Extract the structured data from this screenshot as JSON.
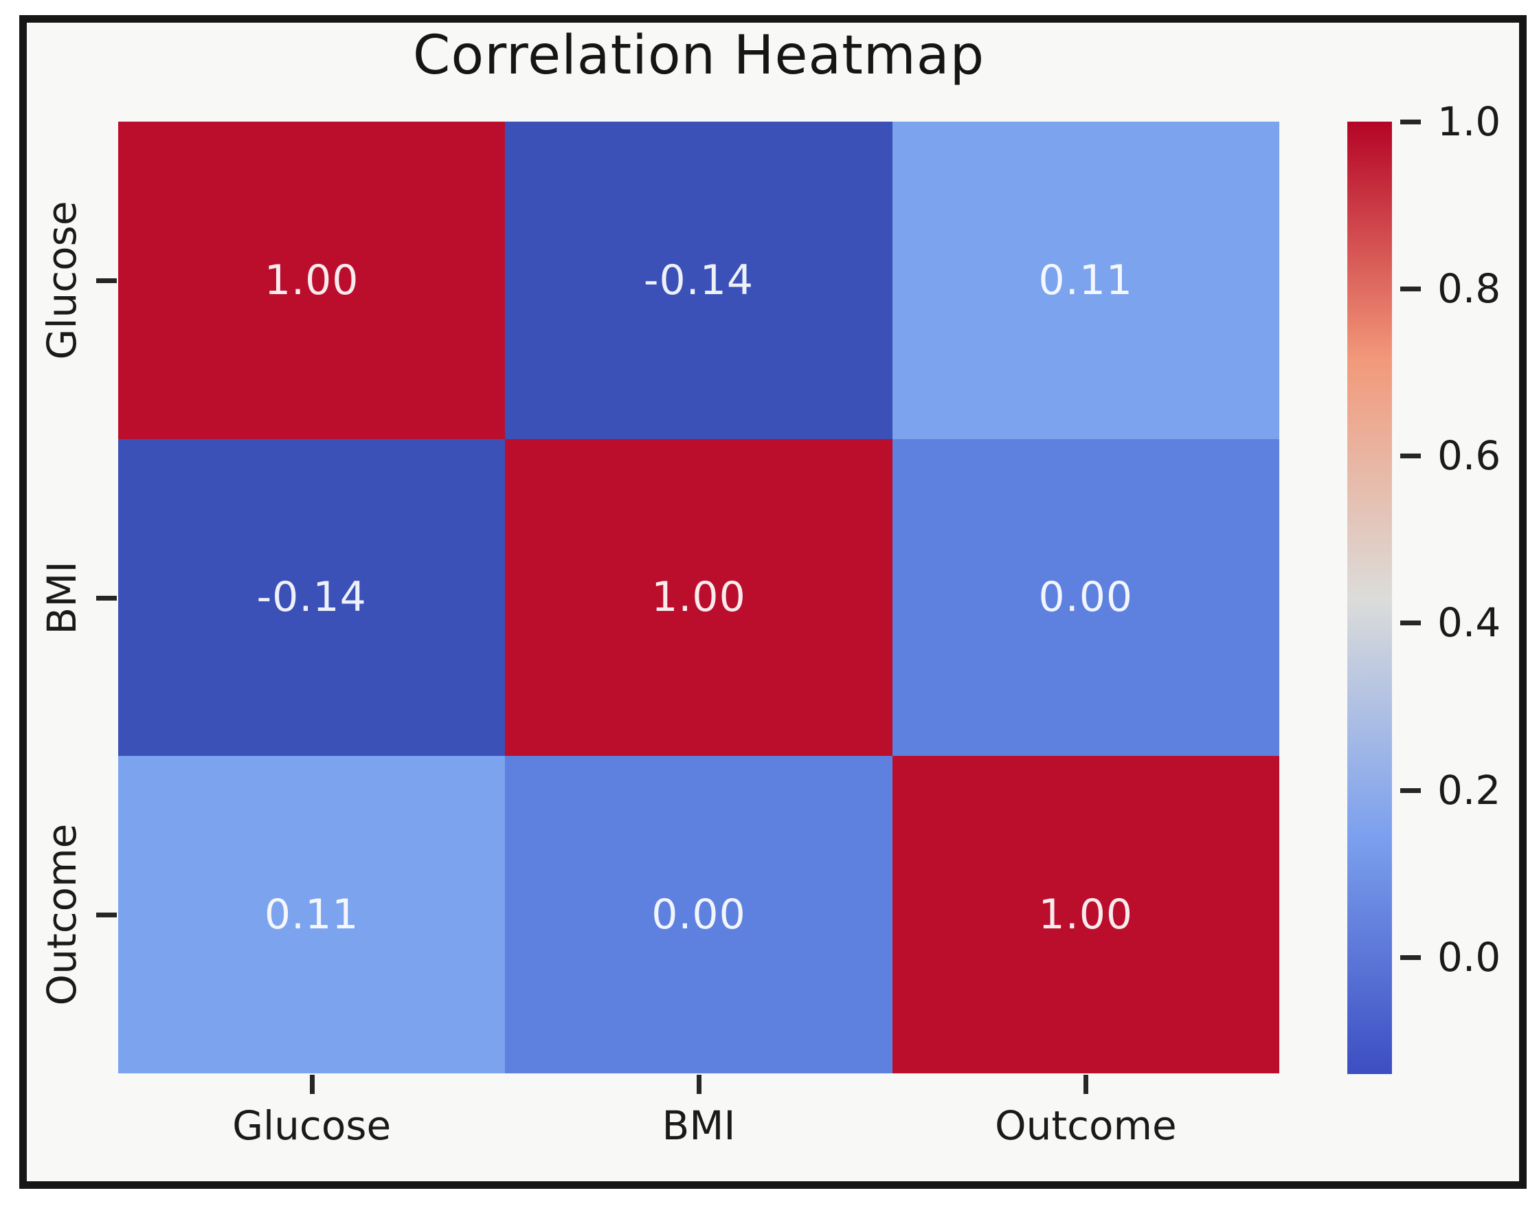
{
  "figure": {
    "background": "#f8f8f7",
    "frame_color": "#161616",
    "title_color": "#151515"
  },
  "chart_data": {
    "type": "heatmap",
    "title": "Correlation Heatmap",
    "categories": [
      "Glucose",
      "BMI",
      "Outcome"
    ],
    "x_tick_labels": [
      "Glucose",
      "BMI",
      "Outcome"
    ],
    "y_tick_labels": [
      "Glucose",
      "BMI",
      "Outcome"
    ],
    "matrix": [
      [
        1.0,
        -0.14,
        0.11
      ],
      [
        -0.14,
        1.0,
        0.0
      ],
      [
        0.11,
        0.0,
        1.0
      ]
    ],
    "cell_labels": [
      [
        "1.00",
        "-0.14",
        "0.11"
      ],
      [
        "-0.14",
        "1.00",
        "0.00"
      ],
      [
        "0.11",
        "0.00",
        "1.00"
      ]
    ],
    "cell_colors": [
      [
        "#bb0e2c",
        "#3b51b7",
        "#7ba3ee"
      ],
      [
        "#3b51b7",
        "#bb0e2c",
        "#5e81e0"
      ],
      [
        "#7ba3ee",
        "#5e81e0",
        "#bb0e2c"
      ]
    ],
    "colormap": "coolwarm",
    "vmin": -0.14,
    "vmax": 1.0,
    "grid": false,
    "legend_position": "right-colorbar",
    "colorbar": {
      "ticks": [
        {
          "label": "1.0",
          "value": 1.0
        },
        {
          "label": "0.8",
          "value": 0.8
        },
        {
          "label": "0.6",
          "value": 0.6
        },
        {
          "label": "0.4",
          "value": 0.4
        },
        {
          "label": "0.2",
          "value": 0.2
        },
        {
          "label": "0.0",
          "value": 0.0
        }
      ],
      "gradient_top": "#b40426",
      "gradient_mid": "#dcdcda",
      "gradient_bottom": "#3c4ec2"
    }
  }
}
